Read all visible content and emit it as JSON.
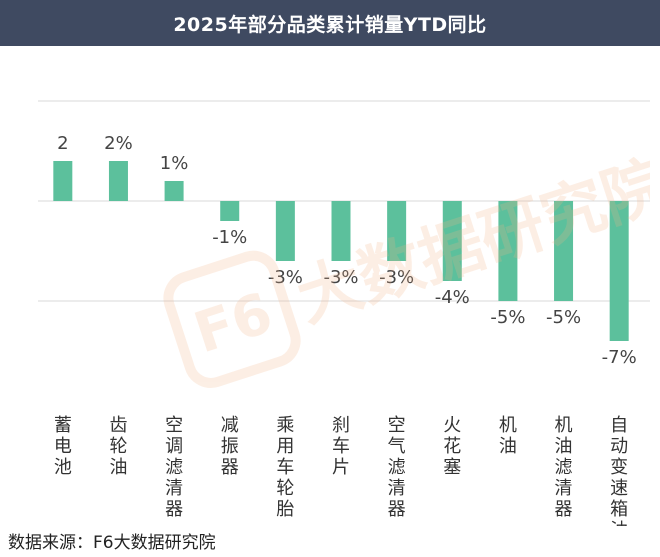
{
  "title": "2025年部分品类累计销量YTD同比",
  "source_label": "数据来源：F6大数据研究院",
  "watermark_text": "F6大数据研究院",
  "colors": {
    "title_bg": "#3f4a61",
    "bar": "#5cc09c",
    "grid": "#d9d9d9",
    "label": "#444444",
    "watermark": "#f3b48a"
  },
  "chart_data": {
    "type": "bar",
    "categories": [
      "蓄电池",
      "齿轮油",
      "空调滤清器",
      "减振器",
      "乘用车轮胎",
      "刹车片",
      "空气滤清器",
      "火花塞",
      "机油",
      "机油滤清器",
      "自动变速箱油"
    ],
    "values": [
      2,
      2,
      1,
      -1,
      -3,
      -3,
      -3,
      -4,
      -5,
      -5,
      -7
    ],
    "data_labels": [
      "2",
      "2%",
      "1%",
      "-1%",
      "-3%",
      "-3%",
      "-3%",
      "-4%",
      "-5%",
      "-5%",
      "-7%"
    ],
    "ylim": [
      -7,
      5
    ],
    "grid": true,
    "legend": "none",
    "xlabel": "",
    "ylabel": ""
  }
}
